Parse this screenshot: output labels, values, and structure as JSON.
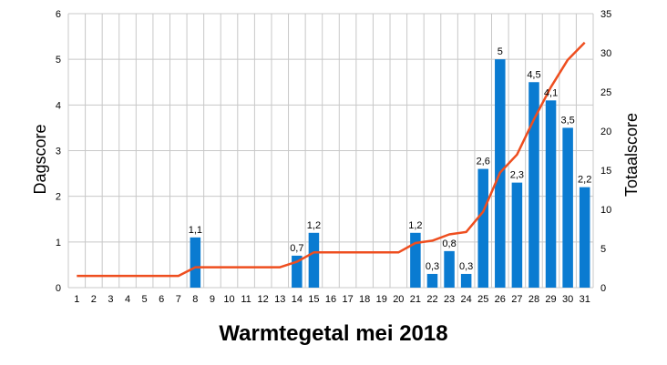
{
  "chart_data": {
    "type": "bar+line",
    "title": "Warmtegetal mei 2018",
    "ylabel_left": "Dagscore",
    "ylabel_right": "Totaalscore",
    "xlabel": "",
    "categories": [
      "1",
      "2",
      "3",
      "4",
      "5",
      "6",
      "7",
      "8",
      "9",
      "10",
      "11",
      "12",
      "13",
      "14",
      "15",
      "16",
      "17",
      "18",
      "19",
      "20",
      "21",
      "22",
      "23",
      "24",
      "25",
      "26",
      "27",
      "28",
      "29",
      "30",
      "31"
    ],
    "series": [
      {
        "axis": "left",
        "kind": "bar",
        "color": "#0a7bd1",
        "values": [
          0,
          0,
          0,
          0,
          0,
          0,
          0,
          1.1,
          0,
          0,
          0,
          0,
          0,
          0.7,
          1.2,
          0,
          0,
          0,
          0,
          0,
          1.2,
          0.3,
          0.8,
          0.3,
          2.6,
          5,
          2.3,
          4.5,
          4.1,
          3.5,
          2.2
        ],
        "data_labels": [
          "",
          "",
          "",
          "",
          "",
          "",
          "",
          "1,1",
          "",
          "",
          "",
          "",
          "",
          "0,7",
          "1,2",
          "",
          "",
          "",
          "",
          "",
          "1,2",
          "0,3",
          "0,8",
          "0,3",
          "2,6",
          "5",
          "2,3",
          "4,5",
          "4,1",
          "3,5",
          "2,2"
        ]
      },
      {
        "axis": "right",
        "kind": "line",
        "color": "#ee4e1f",
        "values": [
          1.5,
          1.5,
          1.5,
          1.5,
          1.5,
          1.5,
          1.5,
          2.6,
          2.6,
          2.6,
          2.6,
          2.6,
          2.6,
          3.3,
          4.5,
          4.5,
          4.5,
          4.5,
          4.5,
          4.5,
          5.7,
          6.0,
          6.8,
          7.1,
          9.7,
          14.7,
          17.0,
          21.5,
          25.6,
          29.1,
          31.3
        ]
      }
    ],
    "ylim_left": [
      0,
      6
    ],
    "yticks_left": [
      0,
      1,
      2,
      3,
      4,
      5,
      6
    ],
    "ylim_right": [
      0,
      35
    ],
    "yticks_right": [
      0,
      5,
      10,
      15,
      20,
      25,
      30,
      35
    ],
    "grid": true,
    "legend": "none"
  }
}
